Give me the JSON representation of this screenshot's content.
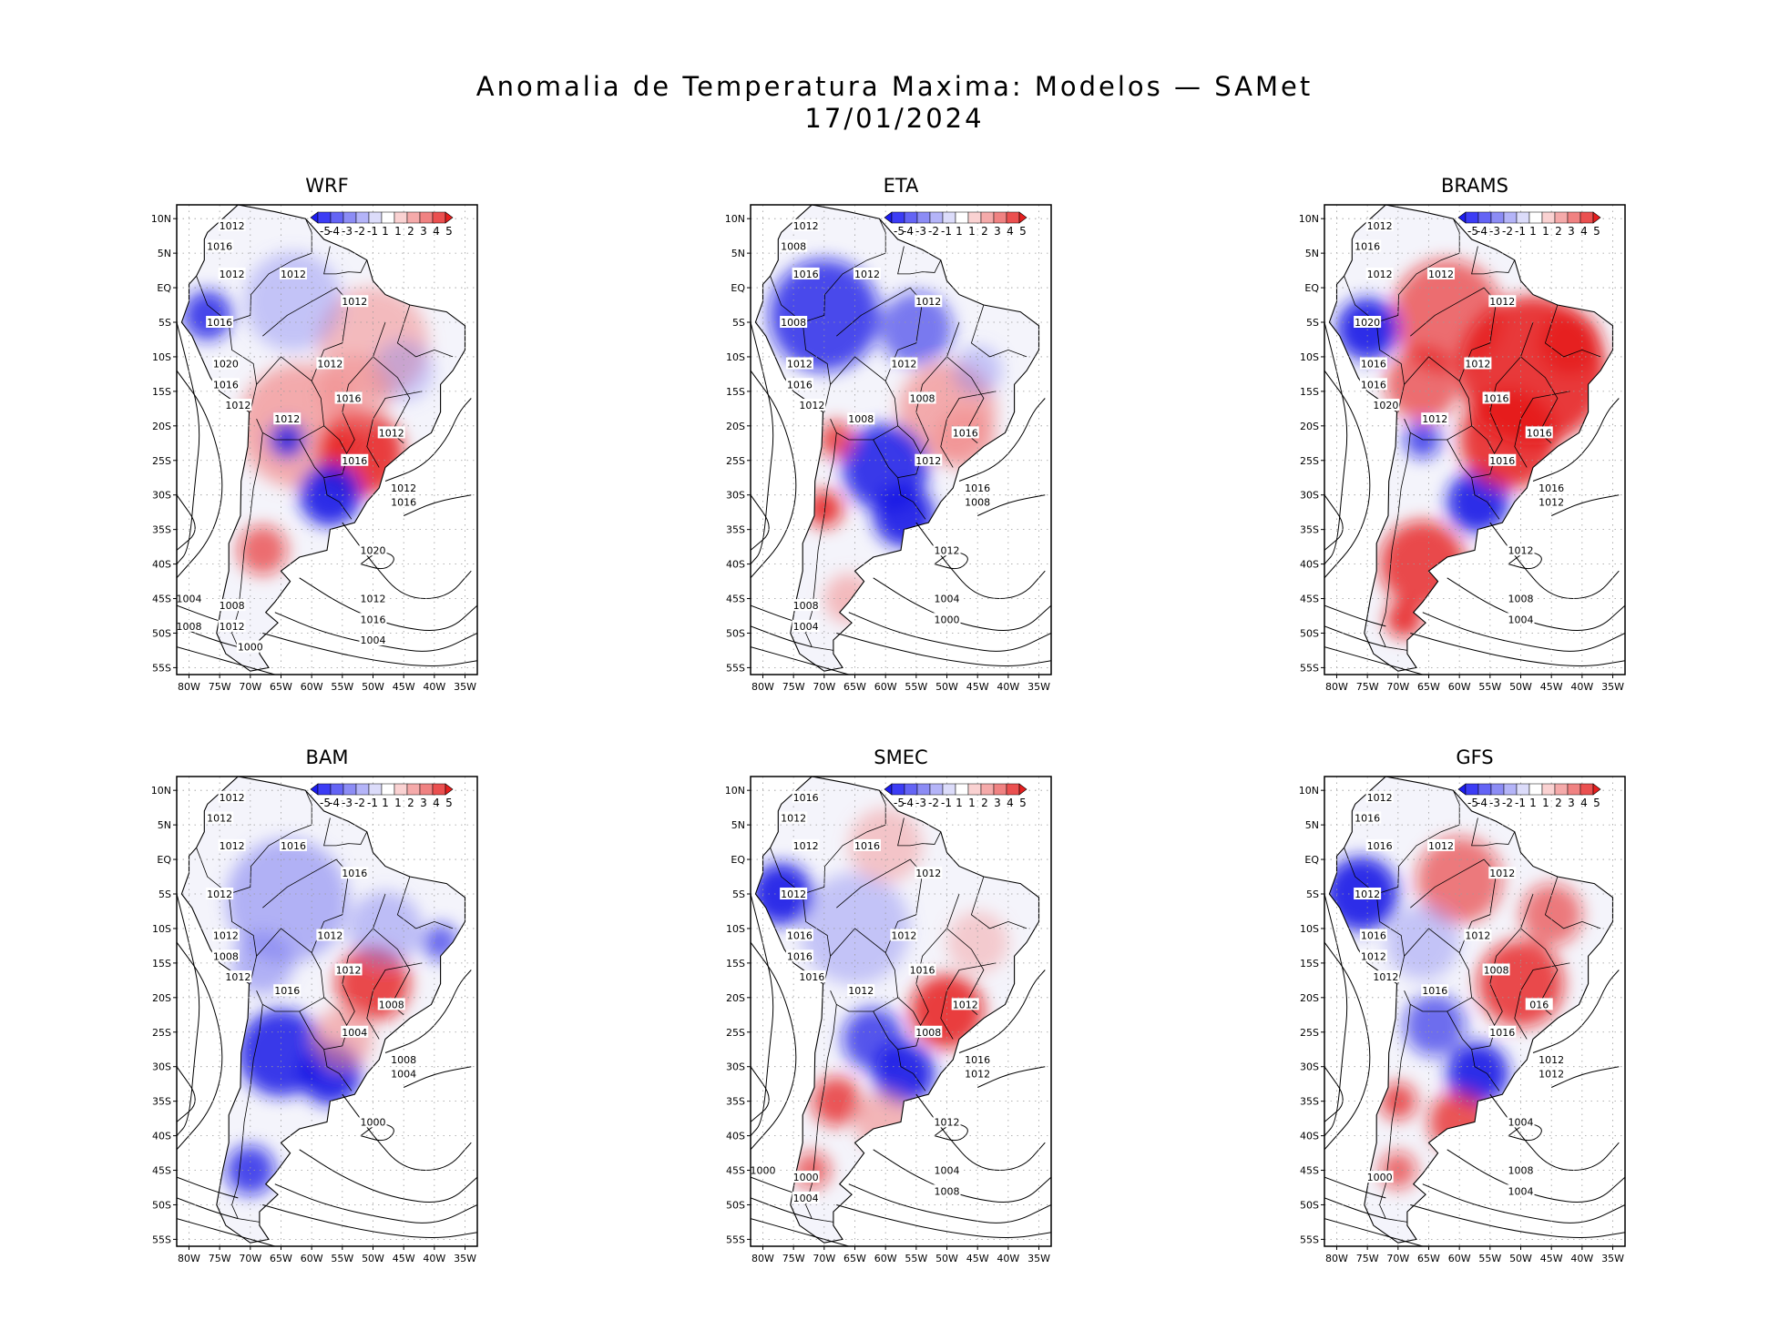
{
  "figure": {
    "title": "Anomalia de Temperatura Maxima: Modelos — SAMet",
    "date": "17/01/2024"
  },
  "panels": [
    {
      "model": "WRF",
      "isobar_labels": [
        "1012",
        "1016",
        "1012",
        "1012",
        "1012",
        "1016",
        "1020",
        "1016",
        "1012",
        "1012",
        "1012",
        "1016",
        "1012",
        "1016",
        "1012",
        "1016",
        "1020",
        "1012",
        "1016",
        "1008",
        "1012",
        "1004",
        "1008",
        "1000",
        "1004"
      ]
    },
    {
      "model": "ETA",
      "isobar_labels": [
        "1012",
        "1008",
        "1016",
        "1012",
        "1012",
        "1008",
        "1012",
        "1016",
        "1012",
        "1008",
        "1012",
        "1008",
        "1016",
        "1012",
        "1016",
        "1008",
        "1012",
        "1004",
        "1000",
        "1008",
        "1004"
      ]
    },
    {
      "model": "BRAMS",
      "isobar_labels": [
        "1012",
        "1016",
        "1012",
        "1012",
        "1012",
        "1020",
        "1016",
        "1016",
        "1020",
        "1012",
        "1012",
        "1016",
        "1016",
        "1016",
        "1016",
        "1012",
        "1012",
        "1008",
        "1004"
      ]
    },
    {
      "model": "BAM",
      "isobar_labels": [
        "1012",
        "1012",
        "1012",
        "1016",
        "1016",
        "1012",
        "1012",
        "1008",
        "1012",
        "1016",
        "1012",
        "1012",
        "1008",
        "1004",
        "1008",
        "1004",
        "1000"
      ]
    },
    {
      "model": "SMEC",
      "isobar_labels": [
        "1016",
        "1012",
        "1012",
        "1016",
        "1012",
        "1012",
        "1016",
        "1016",
        "1016",
        "1012",
        "1012",
        "1016",
        "1012",
        "1008",
        "1016",
        "1012",
        "1012",
        "1004",
        "1008",
        "1000",
        "1004",
        "1000"
      ]
    },
    {
      "model": "GFS",
      "isobar_labels": [
        "1012",
        "1016",
        "1016",
        "1012",
        "1012",
        "1012",
        "1016",
        "1012",
        "1012",
        "1016",
        "1012",
        "1008",
        "016",
        "1016",
        "1012",
        "1012",
        "1004",
        "1008",
        "1004",
        "1000"
      ]
    }
  ],
  "axes": {
    "lat_ticks": [
      "10N",
      "5N",
      "EQ",
      "5S",
      "10S",
      "15S",
      "20S",
      "25S",
      "30S",
      "35S",
      "40S",
      "45S",
      "50S",
      "55S"
    ],
    "lon_ticks": [
      "80W",
      "75W",
      "70W",
      "65W",
      "60W",
      "55W",
      "50W",
      "45W",
      "40W",
      "35W"
    ]
  },
  "colorbar": {
    "labels": [
      "-5",
      "-4",
      "-3",
      "-2",
      "-1",
      "1",
      "1",
      "2",
      "3",
      "4",
      "5"
    ],
    "colors": [
      "#1c1cf0",
      "#3c3cf5",
      "#6464f5",
      "#8c8cf5",
      "#b4b4f8",
      "#dcdcfa",
      "#ffffff",
      "#fad2d2",
      "#f5aaaa",
      "#f08282",
      "#eb5050",
      "#e61e1e"
    ]
  },
  "colors": {
    "cold": "#1e1ee6",
    "warm": "#e61e1e",
    "land": "#f4f4fb",
    "ocean": "#ffffff",
    "contour": "#000000"
  }
}
